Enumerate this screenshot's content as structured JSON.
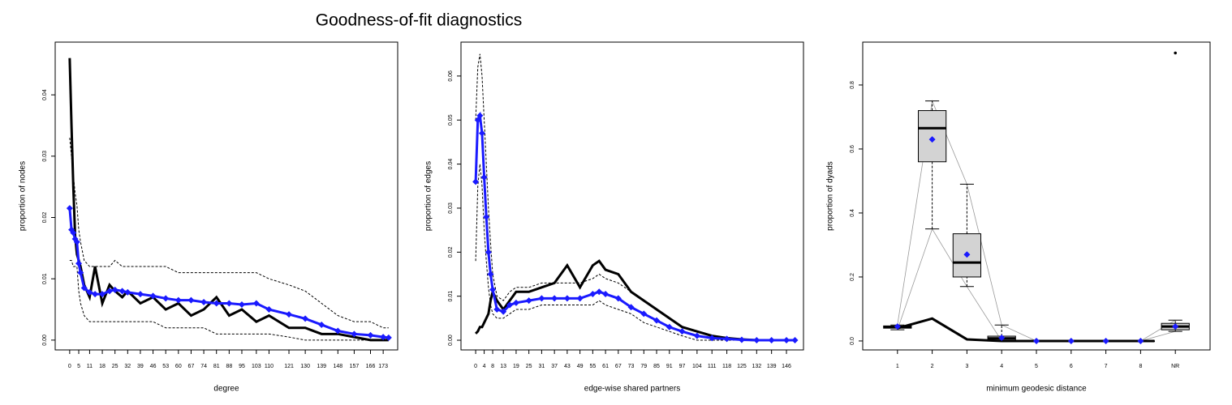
{
  "title": "Goodness-of-fit diagnostics",
  "chart_data": [
    {
      "type": "line",
      "x_label": "degree",
      "y_label": "proportion of nodes",
      "x": [
        0,
        1,
        2,
        3,
        4,
        5,
        6,
        8,
        11,
        14,
        18,
        22,
        25,
        29,
        32,
        39,
        46,
        53,
        60,
        67,
        74,
        81,
        88,
        95,
        103,
        110,
        121,
        130,
        139,
        148,
        157,
        166,
        173,
        176
      ],
      "series": [
        {
          "color": "#000000",
          "width": 1,
          "dashed": true,
          "values": [
            0.033,
            0.03,
            0.027,
            0.024,
            0.022,
            0.018,
            0.016,
            0.013,
            0.012,
            0.012,
            0.012,
            0.012,
            0.013,
            0.012,
            0.012,
            0.012,
            0.012,
            0.012,
            0.011,
            0.011,
            0.011,
            0.011,
            0.011,
            0.011,
            0.011,
            0.01,
            0.009,
            0.008,
            0.006,
            0.004,
            0.003,
            0.003,
            0.002,
            0.002
          ]
        },
        {
          "color": "#000000",
          "width": 1,
          "dashed": true,
          "values": [
            0.013,
            0.013,
            0.012,
            0.012,
            0.012,
            0.008,
            0.006,
            0.004,
            0.003,
            0.003,
            0.003,
            0.003,
            0.003,
            0.003,
            0.003,
            0.003,
            0.003,
            0.002,
            0.002,
            0.002,
            0.002,
            0.001,
            0.001,
            0.001,
            0.001,
            0.001,
            0.0005,
            0,
            0,
            0,
            0,
            0,
            0,
            0
          ]
        },
        {
          "color": "#000000",
          "width": 3,
          "dashed": false,
          "values": [
            0.046,
            0.035,
            0.025,
            0.017,
            0.014,
            0.013,
            0.012,
            0.009,
            0.007,
            0.012,
            0.006,
            0.009,
            0.008,
            0.007,
            0.008,
            0.006,
            0.007,
            0.005,
            0.006,
            0.004,
            0.005,
            0.007,
            0.004,
            0.005,
            0.003,
            0.004,
            0.002,
            0.002,
            0.001,
            0.001,
            0.0005,
            0,
            0,
            0
          ]
        },
        {
          "color": "#1a1aff",
          "width": 3,
          "dashed": false,
          "marker": "diamond",
          "values": [
            0.0215,
            0.018,
            0.0175,
            0.0165,
            0.016,
            0.0125,
            0.011,
            0.0085,
            0.0078,
            0.0075,
            0.0075,
            0.008,
            0.0082,
            0.008,
            0.0078,
            0.0075,
            0.0072,
            0.0068,
            0.0065,
            0.0065,
            0.0062,
            0.006,
            0.006,
            0.0058,
            0.006,
            0.005,
            0.0042,
            0.0035,
            0.0025,
            0.0015,
            0.001,
            0.0008,
            0.0005,
            0.0004
          ]
        }
      ],
      "xlim": [
        -8,
        181
      ],
      "xticks": [
        0,
        5,
        11,
        18,
        25,
        32,
        39,
        46,
        53,
        60,
        67,
        74,
        81,
        88,
        95,
        103,
        110,
        121,
        130,
        139,
        148,
        157,
        166,
        173
      ],
      "ylim": [
        -0.0016,
        0.0486
      ],
      "yticks": [
        {
          "value": 0,
          "label": "0.00"
        },
        0.01,
        0.02,
        0.03,
        0.04
      ]
    },
    {
      "type": "line",
      "x_label": "edge-wise shared partners",
      "y_label": "proportion of edges",
      "x": [
        0,
        1,
        2,
        3,
        4,
        5,
        6,
        7,
        8,
        10,
        13,
        16,
        19,
        25,
        31,
        37,
        43,
        49,
        55,
        58,
        61,
        67,
        73,
        79,
        85,
        91,
        97,
        104,
        111,
        118,
        125,
        132,
        139,
        146,
        150
      ],
      "series": [
        {
          "color": "#000000",
          "width": 1,
          "dashed": true,
          "values": [
            0.05,
            0.062,
            0.065,
            0.06,
            0.05,
            0.04,
            0.03,
            0.022,
            0.015,
            0.01,
            0.009,
            0.011,
            0.012,
            0.012,
            0.013,
            0.013,
            0.013,
            0.013,
            0.014,
            0.015,
            0.014,
            0.013,
            0.011,
            0.009,
            0.007,
            0.005,
            0.003,
            0.002,
            0.001,
            0.0005,
            0.0002,
            0,
            0,
            0,
            0
          ]
        },
        {
          "color": "#000000",
          "width": 1,
          "dashed": true,
          "values": [
            0.018,
            0.035,
            0.04,
            0.035,
            0.025,
            0.018,
            0.012,
            0.008,
            0.006,
            0.005,
            0.005,
            0.006,
            0.007,
            0.007,
            0.008,
            0.008,
            0.008,
            0.008,
            0.008,
            0.009,
            0.008,
            0.007,
            0.006,
            0.004,
            0.003,
            0.002,
            0.001,
            0,
            0,
            0,
            0,
            0,
            0,
            0,
            0
          ]
        },
        {
          "color": "#000000",
          "width": 3,
          "dashed": false,
          "values": [
            0.0015,
            0.002,
            0.003,
            0.003,
            0.004,
            0.005,
            0.006,
            0.009,
            0.011,
            0.009,
            0.007,
            0.009,
            0.011,
            0.011,
            0.012,
            0.013,
            0.017,
            0.012,
            0.017,
            0.018,
            0.016,
            0.015,
            0.011,
            0.009,
            0.007,
            0.005,
            0.003,
            0.002,
            0.001,
            0.0005,
            0.0002,
            0,
            0,
            0,
            0
          ]
        },
        {
          "color": "#1a1aff",
          "width": 3,
          "dashed": false,
          "marker": "diamond",
          "values": [
            0.036,
            0.05,
            0.051,
            0.047,
            0.037,
            0.028,
            0.02,
            0.015,
            0.0115,
            0.007,
            0.0065,
            0.008,
            0.0085,
            0.009,
            0.0095,
            0.0095,
            0.0095,
            0.0095,
            0.0105,
            0.011,
            0.0105,
            0.0095,
            0.0075,
            0.006,
            0.0045,
            0.003,
            0.002,
            0.001,
            0.0005,
            0.0003,
            0.0001,
            0,
            0,
            0,
            0
          ]
        }
      ],
      "xlim": [
        -6.9,
        154
      ],
      "xticks": [
        0,
        4,
        8,
        13,
        19,
        25,
        31,
        37,
        43,
        49,
        55,
        61,
        67,
        73,
        79,
        85,
        91,
        97,
        104,
        111,
        118,
        125,
        132,
        139,
        146
      ],
      "ylim": [
        -0.0022,
        0.0677
      ],
      "yticks": [
        {
          "value": 0,
          "label": "0.00"
        },
        0.01,
        0.02,
        0.03,
        0.04,
        0.05,
        0.06
      ]
    },
    {
      "type": "box",
      "x_label": "minimum geodesic distance",
      "y_label": "proportion of dyads",
      "categories": [
        "1",
        "2",
        "3",
        "4",
        "5",
        "6",
        "7",
        "8",
        "NR"
      ],
      "min": [
        0.035,
        0.35,
        0.17,
        0,
        0,
        0,
        0,
        0,
        0.03
      ],
      "q1": [
        0.04,
        0.56,
        0.2,
        0.002,
        0,
        0,
        0,
        0,
        0.035
      ],
      "median": [
        0.043,
        0.665,
        0.245,
        0.008,
        0,
        0,
        0,
        0,
        0.045
      ],
      "q3": [
        0.047,
        0.72,
        0.335,
        0.015,
        0,
        0,
        0,
        0,
        0.055
      ],
      "max": [
        0.05,
        0.75,
        0.49,
        0.05,
        0,
        0,
        0,
        0,
        0.065
      ],
      "mean": [
        0.045,
        0.63,
        0.27,
        0.01,
        0,
        0,
        0,
        0,
        0.045
      ],
      "outliers": [
        null,
        null,
        null,
        null,
        null,
        null,
        null,
        null,
        0.9
      ],
      "observed": [
        0.04,
        0.07,
        0.005,
        0,
        0,
        0,
        0,
        0,
        null
      ],
      "box_color": "#d3d3d3",
      "mean_color": "#1a1aff",
      "observed_color": "#000000",
      "range_color": "#999999",
      "ylim": [
        -0.028,
        0.934
      ],
      "yticks": [
        {
          "value": 0,
          "label": "0.0"
        },
        0.2,
        0.4,
        0.6,
        0.8
      ]
    }
  ]
}
